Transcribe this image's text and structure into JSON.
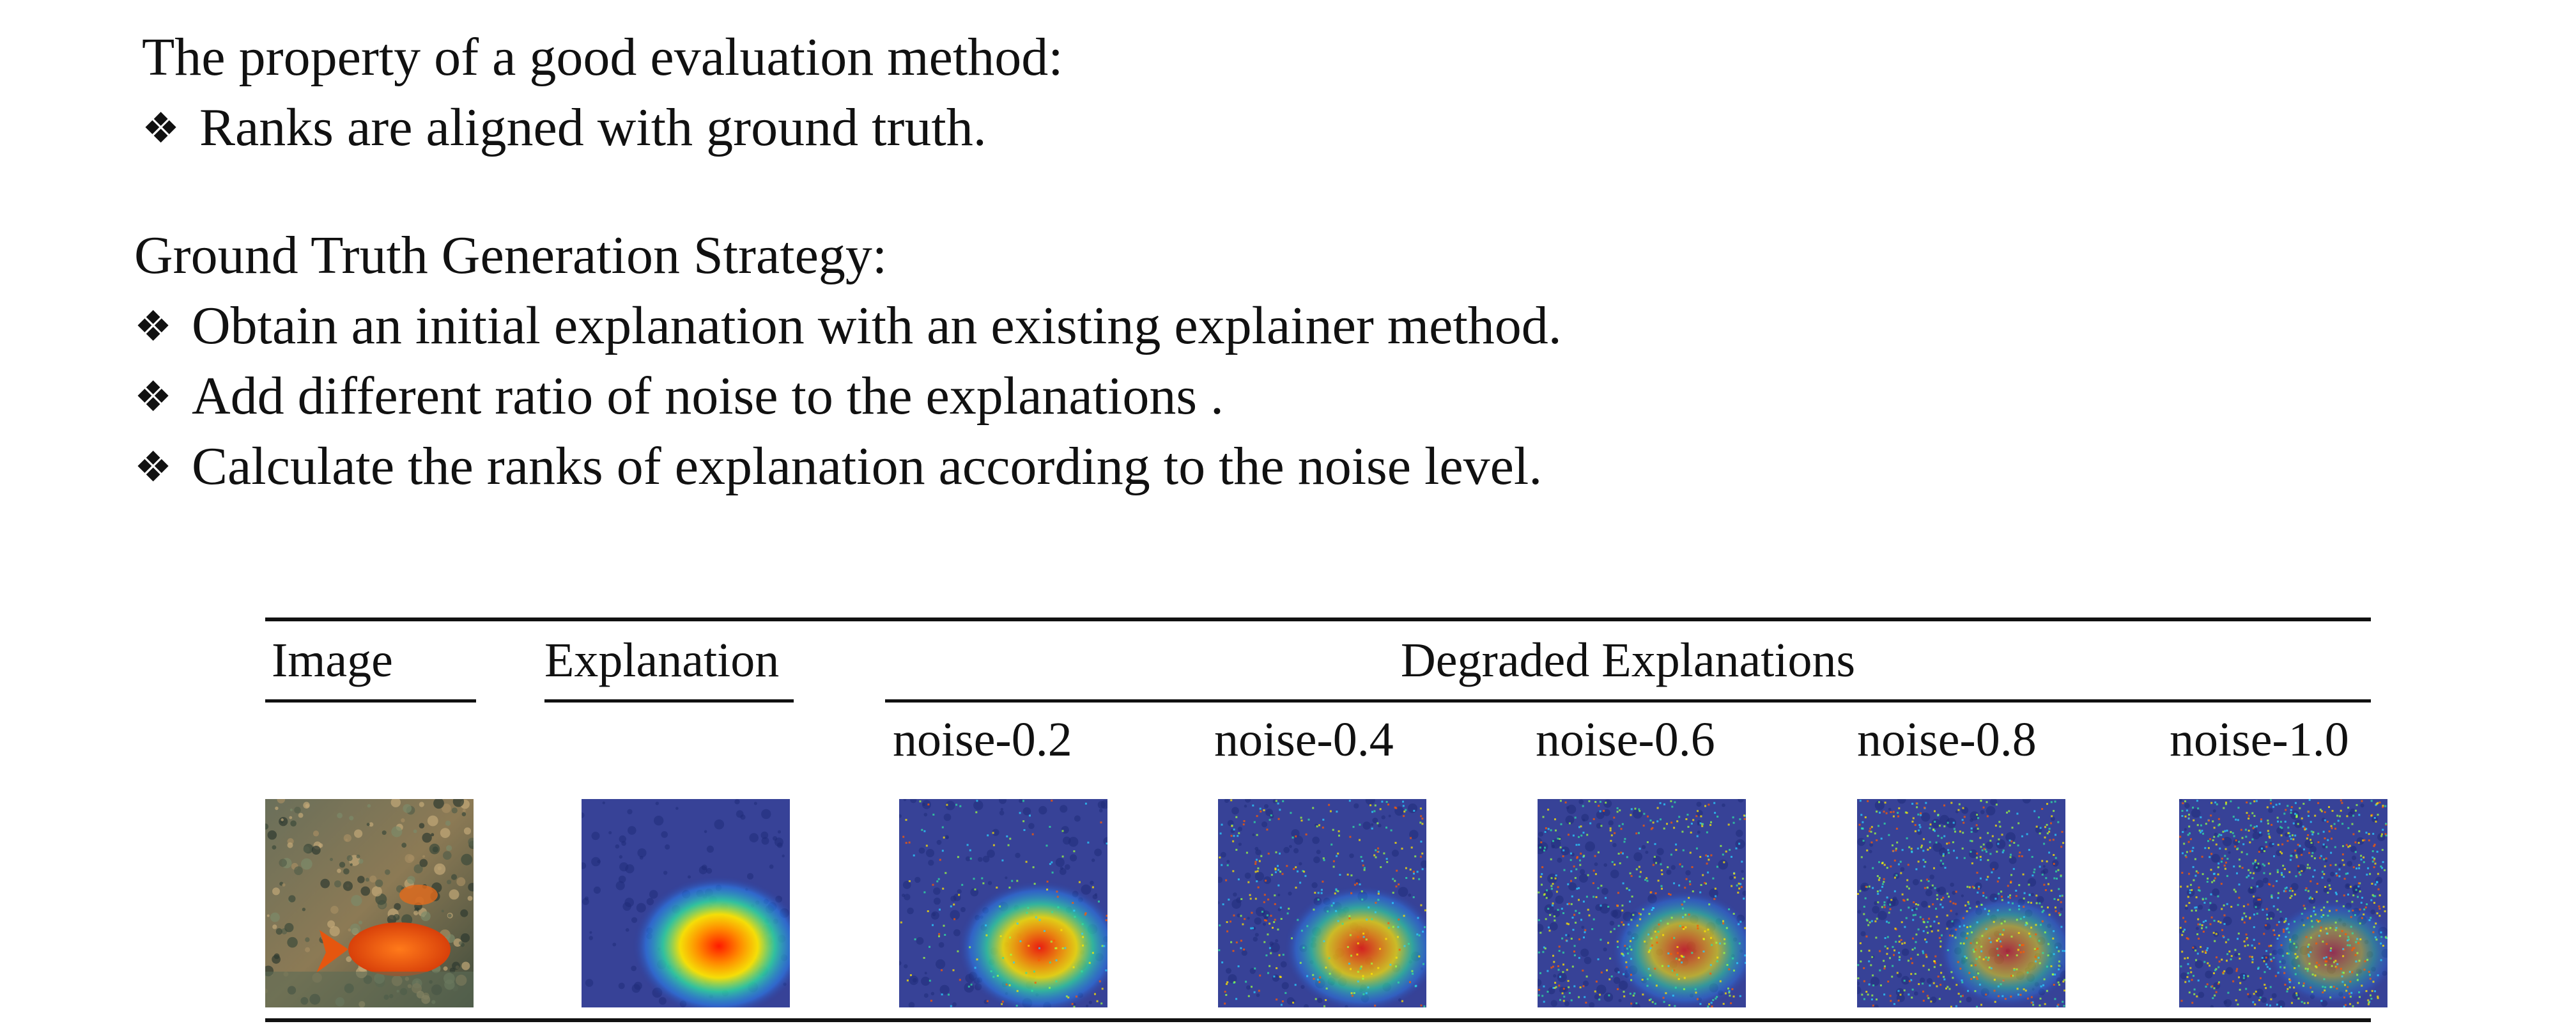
{
  "section1": {
    "heading": "The property of a good evaluation method:",
    "bullets": [
      "Ranks are aligned with ground truth."
    ]
  },
  "section2": {
    "heading": "Ground Truth Generation Strategy:",
    "bullets": [
      "Obtain an initial explanation with an existing explainer method.",
      "Add different ratio of noise to the explanations .",
      "Calculate the ranks of explanation according to the noise level."
    ]
  },
  "bullet_symbol": "❖",
  "table": {
    "col_image": "Image",
    "col_explanation": "Explanation",
    "col_degraded": "Degraded Explanations",
    "noise_levels": [
      "noise-0.2",
      "noise-0.4",
      "noise-0.6",
      "noise-0.8",
      "noise-1.0"
    ],
    "noise_values": [
      0.2,
      0.4,
      0.6,
      0.8,
      1.0
    ]
  },
  "colors": {
    "heatmap_background": "#2b3a9a",
    "heatmap_hot": "#ff2a00",
    "fish_orange": "#f05a10"
  }
}
